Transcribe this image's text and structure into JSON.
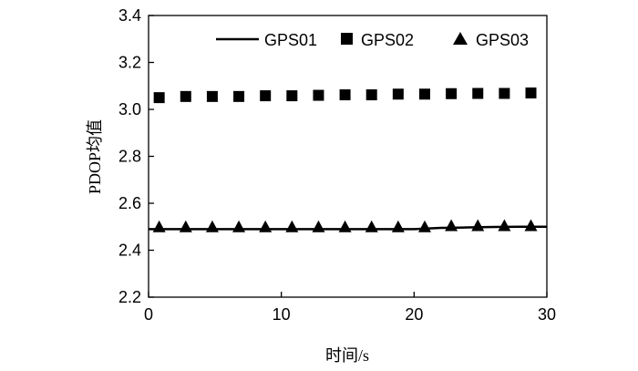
{
  "chart_data": {
    "type": "line",
    "title": "",
    "xlabel": "时间/s",
    "ylabel": "PDOP均值",
    "xlim": [
      0,
      30
    ],
    "ylim": [
      2.2,
      3.4
    ],
    "xticks": [
      0,
      10,
      20,
      30
    ],
    "yticks": [
      2.2,
      2.4,
      2.6,
      2.8,
      3.0,
      3.2,
      3.4
    ],
    "xtick_labels": [
      "0",
      "10",
      "20",
      "30"
    ],
    "ytick_labels": [
      "2.2",
      "2.4",
      "2.6",
      "2.8",
      "3.0",
      "3.2",
      "3.4"
    ],
    "grid": false,
    "legend_position": "top",
    "series": [
      {
        "name": "GPS01",
        "style": "line",
        "color": "#000000",
        "x": [
          0,
          2,
          4,
          6,
          8,
          10,
          12,
          14,
          16,
          18,
          20,
          22,
          24,
          26,
          28,
          30
        ],
        "y": [
          2.49,
          2.49,
          2.49,
          2.49,
          2.49,
          2.49,
          2.49,
          2.49,
          2.49,
          2.49,
          2.49,
          2.495,
          2.497,
          2.499,
          2.5,
          2.5
        ]
      },
      {
        "name": "GPS02",
        "style": "square",
        "color": "#000000",
        "x": [
          0.8,
          2.8,
          4.8,
          6.8,
          8.8,
          10.8,
          12.8,
          14.8,
          16.8,
          18.8,
          20.8,
          22.8,
          24.8,
          26.8,
          28.8
        ],
        "y": [
          3.05,
          3.055,
          3.055,
          3.055,
          3.058,
          3.058,
          3.06,
          3.062,
          3.062,
          3.065,
          3.065,
          3.067,
          3.068,
          3.068,
          3.07
        ]
      },
      {
        "name": "GPS03",
        "style": "triangle",
        "color": "#000000",
        "x": [
          0.8,
          2.8,
          4.8,
          6.8,
          8.8,
          10.8,
          12.8,
          14.8,
          16.8,
          18.8,
          20.8,
          22.8,
          24.8,
          26.8,
          28.8
        ],
        "y": [
          2.5,
          2.5,
          2.5,
          2.5,
          2.5,
          2.5,
          2.5,
          2.5,
          2.5,
          2.5,
          2.5,
          2.505,
          2.505,
          2.505,
          2.505
        ]
      }
    ]
  }
}
